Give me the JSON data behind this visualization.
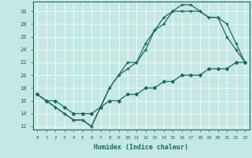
{
  "xlabel": "Humidex (Indice chaleur)",
  "ylabel": "",
  "xlim": [
    -0.5,
    23.5
  ],
  "ylim": [
    11.5,
    31.5
  ],
  "yticks": [
    12,
    14,
    16,
    18,
    20,
    22,
    24,
    26,
    28,
    30
  ],
  "xticks": [
    0,
    1,
    2,
    3,
    4,
    5,
    6,
    7,
    8,
    9,
    10,
    11,
    12,
    13,
    14,
    15,
    16,
    17,
    18,
    19,
    20,
    21,
    22,
    23
  ],
  "background_color": "#c5e8e4",
  "line_color": "#1a6b5e",
  "line1_x": [
    0,
    1,
    2,
    3,
    4,
    5,
    6,
    7,
    8,
    9,
    10,
    11,
    12,
    13,
    14,
    15,
    16,
    17,
    18,
    19,
    20,
    21,
    22,
    23
  ],
  "line1_y": [
    17,
    16,
    15,
    14,
    13,
    13,
    12,
    15,
    18,
    20,
    21,
    22,
    25,
    27,
    28,
    30,
    31,
    31,
    30,
    29,
    29,
    26,
    24,
    22
  ],
  "line2_x": [
    0,
    1,
    2,
    3,
    4,
    5,
    6,
    7,
    8,
    9,
    10,
    11,
    12,
    13,
    14,
    15,
    16,
    17,
    18,
    19,
    20,
    21,
    22,
    23
  ],
  "line2_y": [
    17,
    16,
    15,
    14,
    13,
    13,
    12,
    15,
    18,
    20,
    22,
    22,
    24,
    27,
    29,
    30,
    30,
    30,
    30,
    29,
    29,
    28,
    25,
    22
  ],
  "line3_x": [
    0,
    1,
    2,
    3,
    4,
    5,
    6,
    7,
    8,
    9,
    10,
    11,
    12,
    13,
    14,
    15,
    16,
    17,
    18,
    19,
    20,
    21,
    22,
    23
  ],
  "line3_y": [
    17,
    16,
    16,
    15,
    14,
    14,
    14,
    15,
    16,
    16,
    17,
    17,
    18,
    18,
    19,
    19,
    20,
    20,
    20,
    21,
    21,
    21,
    22,
    22
  ]
}
